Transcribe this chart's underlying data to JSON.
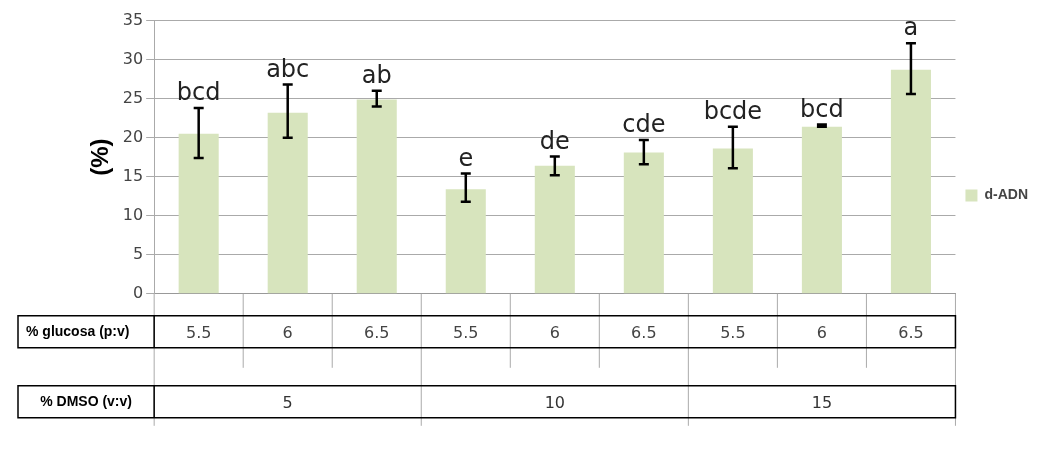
{
  "chart_data": {
    "type": "bar",
    "ylabel": "(%)",
    "categories": [
      "5.5",
      "6",
      "6.5",
      "5.5",
      "6",
      "6.5",
      "5.5",
      "6",
      "6.5"
    ],
    "series": [
      {
        "name": "d-ADN",
        "color": "#d7e4bd",
        "values": [
          20.5,
          23.2,
          24.9,
          13.4,
          16.4,
          18.1,
          18.6,
          21.4,
          28.7
        ],
        "errors": [
          [
            17.4,
            23.8
          ],
          [
            20.0,
            26.8
          ],
          [
            24.0,
            26.0
          ],
          [
            11.8,
            15.4
          ],
          [
            15.2,
            17.6
          ],
          [
            16.6,
            19.7
          ],
          [
            16.1,
            21.4
          ],
          [
            21.4,
            21.7
          ],
          [
            25.6,
            32.1
          ]
        ],
        "value_labels": [
          "bcd",
          "abc",
          "ab",
          "e",
          "de",
          "cde",
          "bcde",
          "bcd",
          "a"
        ]
      }
    ],
    "ylim": [
      0,
      35
    ],
    "yticks": [
      0,
      5,
      10,
      15,
      20,
      25,
      30,
      35
    ],
    "grid": "y",
    "legend": "right",
    "annotations": [
      "% glucosa (p:v)",
      "% DMSO (v:v)",
      "5",
      "10",
      "15"
    ]
  }
}
